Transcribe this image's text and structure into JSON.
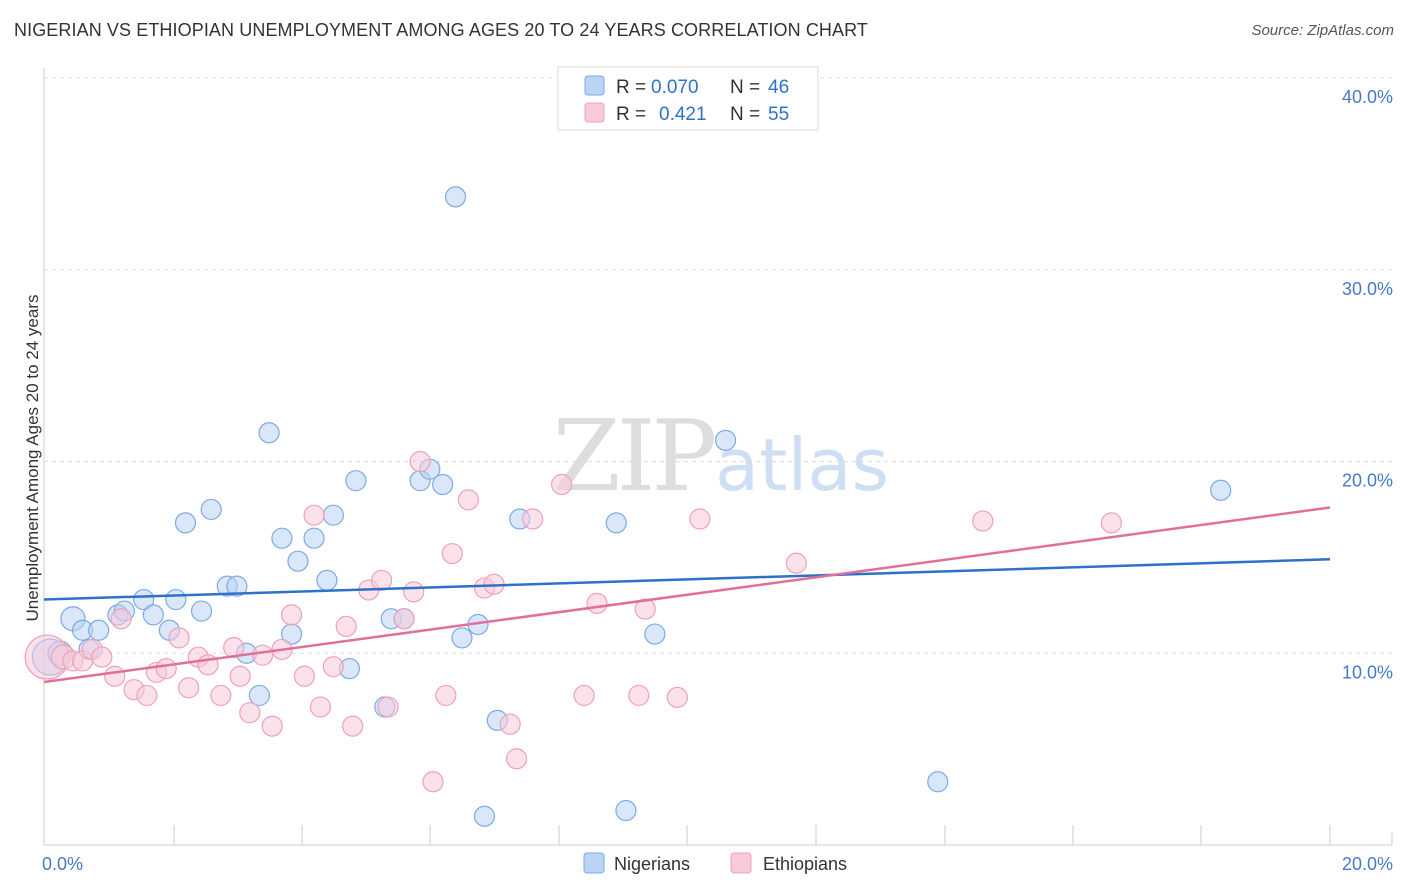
{
  "chart_data": {
    "type": "scatter",
    "title": "NIGERIAN VS ETHIOPIAN UNEMPLOYMENT AMONG AGES 20 TO 24 YEARS CORRELATION CHART",
    "source": "Source: ZipAtlas.com",
    "ylabel": "Unemployment Among Ages 20 to 24 years",
    "xlabel": "",
    "xlim": [
      0,
      20
    ],
    "ylim": [
      0,
      40
    ],
    "x_tick_labels": [
      "0.0%",
      "20.0%"
    ],
    "y_ticks": [
      10,
      20,
      30,
      40
    ],
    "y_tick_labels": [
      "10.0%",
      "20.0%",
      "30.0%",
      "40.0%"
    ],
    "watermark": {
      "zip": "ZIP",
      "atlas": "atlas"
    },
    "legend": [
      {
        "r_label": "R =",
        "r_value": "0.070",
        "n_label": "N =",
        "n_value": "46"
      },
      {
        "r_label": "R =",
        "r_value": "0.421",
        "n_label": "N =",
        "n_value": "55"
      }
    ],
    "series": [
      {
        "name": "Nigerians",
        "color": "#7aaae8",
        "fill": "#bcd4f4",
        "line_color": "#2e72c8",
        "trend": {
          "x": [
            0,
            20
          ],
          "y": [
            12.8,
            14.9
          ]
        },
        "points": [
          [
            0.1,
            9.8,
            18
          ],
          [
            0.25,
            10.0,
            12
          ],
          [
            0.45,
            11.8,
            12
          ],
          [
            0.6,
            11.2,
            10
          ],
          [
            0.7,
            10.2,
            10
          ],
          [
            0.85,
            11.2,
            10
          ],
          [
            1.15,
            12.0,
            10
          ],
          [
            1.25,
            12.2,
            10
          ],
          [
            1.55,
            12.8,
            10
          ],
          [
            1.7,
            12.0,
            10
          ],
          [
            1.95,
            11.2,
            10
          ],
          [
            2.05,
            12.8,
            10
          ],
          [
            2.2,
            16.8,
            10
          ],
          [
            2.45,
            12.2,
            10
          ],
          [
            2.6,
            17.5,
            10
          ],
          [
            2.85,
            13.5,
            10
          ],
          [
            3.0,
            13.5,
            10
          ],
          [
            3.15,
            10.0,
            10
          ],
          [
            3.35,
            7.8,
            10
          ],
          [
            3.5,
            21.5,
            10
          ],
          [
            3.7,
            16.0,
            10
          ],
          [
            3.85,
            11.0,
            10
          ],
          [
            3.95,
            14.8,
            10
          ],
          [
            4.2,
            16.0,
            10
          ],
          [
            4.4,
            13.8,
            10
          ],
          [
            4.5,
            17.2,
            10
          ],
          [
            4.75,
            9.2,
            10
          ],
          [
            4.85,
            19.0,
            10
          ],
          [
            5.3,
            7.2,
            10
          ],
          [
            5.4,
            11.8,
            10
          ],
          [
            5.6,
            11.8,
            10
          ],
          [
            5.85,
            19.0,
            10
          ],
          [
            6.0,
            19.6,
            10
          ],
          [
            6.2,
            18.8,
            10
          ],
          [
            6.4,
            33.8,
            10
          ],
          [
            6.5,
            10.8,
            10
          ],
          [
            6.75,
            11.5,
            10
          ],
          [
            6.85,
            1.5,
            10
          ],
          [
            7.05,
            6.5,
            10
          ],
          [
            7.4,
            17.0,
            10
          ],
          [
            8.9,
            16.8,
            10
          ],
          [
            9.05,
            1.8,
            10
          ],
          [
            9.5,
            11.0,
            10
          ],
          [
            10.6,
            21.1,
            10
          ],
          [
            13.9,
            3.3,
            10
          ],
          [
            18.3,
            18.5,
            10
          ]
        ]
      },
      {
        "name": "Ethiopians",
        "color": "#f0a0b8",
        "fill": "#f8cad8",
        "line_color": "#e0709a",
        "trend": {
          "x": [
            0,
            20
          ],
          "y": [
            8.5,
            17.6
          ]
        },
        "points": [
          [
            0.05,
            9.8,
            22
          ],
          [
            0.3,
            9.8,
            12
          ],
          [
            0.45,
            9.6,
            10
          ],
          [
            0.6,
            9.6,
            10
          ],
          [
            0.75,
            10.2,
            10
          ],
          [
            0.9,
            9.8,
            10
          ],
          [
            1.1,
            8.8,
            10
          ],
          [
            1.2,
            11.8,
            10
          ],
          [
            1.4,
            8.1,
            10
          ],
          [
            1.6,
            7.8,
            10
          ],
          [
            1.75,
            9.0,
            10
          ],
          [
            1.9,
            9.2,
            10
          ],
          [
            2.1,
            10.8,
            10
          ],
          [
            2.25,
            8.2,
            10
          ],
          [
            2.4,
            9.8,
            10
          ],
          [
            2.55,
            9.4,
            10
          ],
          [
            2.75,
            7.8,
            10
          ],
          [
            2.95,
            10.3,
            10
          ],
          [
            3.05,
            8.8,
            10
          ],
          [
            3.2,
            6.9,
            10
          ],
          [
            3.4,
            9.9,
            10
          ],
          [
            3.55,
            6.2,
            10
          ],
          [
            3.7,
            10.2,
            10
          ],
          [
            3.85,
            12.0,
            10
          ],
          [
            4.05,
            8.8,
            10
          ],
          [
            4.2,
            17.2,
            10
          ],
          [
            4.3,
            7.2,
            10
          ],
          [
            4.5,
            9.3,
            10
          ],
          [
            4.7,
            11.4,
            10
          ],
          [
            4.8,
            6.2,
            10
          ],
          [
            5.05,
            13.3,
            10
          ],
          [
            5.25,
            13.8,
            10
          ],
          [
            5.35,
            7.2,
            10
          ],
          [
            5.6,
            11.8,
            10
          ],
          [
            5.75,
            13.2,
            10
          ],
          [
            5.85,
            20.0,
            10
          ],
          [
            6.05,
            3.3,
            10
          ],
          [
            6.25,
            7.8,
            10
          ],
          [
            6.35,
            15.2,
            10
          ],
          [
            6.6,
            18.0,
            10
          ],
          [
            6.85,
            13.4,
            10
          ],
          [
            7.0,
            13.6,
            10
          ],
          [
            7.25,
            6.3,
            10
          ],
          [
            7.35,
            4.5,
            10
          ],
          [
            7.6,
            17.0,
            10
          ],
          [
            8.05,
            18.8,
            10
          ],
          [
            8.4,
            7.8,
            10
          ],
          [
            8.6,
            12.6,
            10
          ],
          [
            9.25,
            7.8,
            10
          ],
          [
            9.35,
            12.3,
            10
          ],
          [
            9.85,
            7.7,
            10
          ],
          [
            10.2,
            17.0,
            10
          ],
          [
            11.7,
            14.7,
            10
          ],
          [
            14.6,
            16.9,
            10
          ],
          [
            16.6,
            16.8,
            10
          ]
        ]
      }
    ]
  }
}
